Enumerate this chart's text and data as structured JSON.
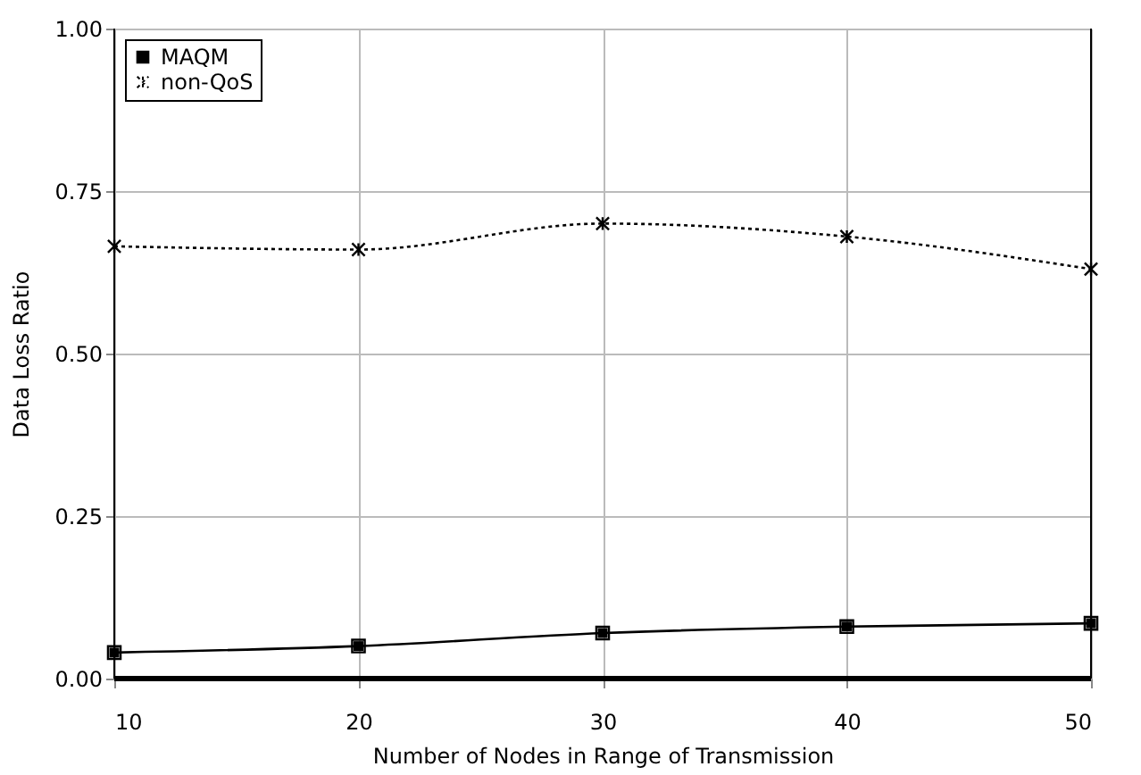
{
  "chart_data": {
    "type": "line",
    "xlabel": "Number of Nodes in Range of Transmission",
    "ylabel": "Data Loss Ratio",
    "x": [
      10,
      20,
      30,
      40,
      50
    ],
    "series": [
      {
        "name": "MAQM",
        "color": "#000000",
        "marker": "square",
        "line_style": "solid",
        "values": [
          0.04,
          0.05,
          0.07,
          0.08,
          0.085
        ]
      },
      {
        "name": "non-QoS",
        "color": "#000000",
        "marker": "cross",
        "line_style": "dotted",
        "values": [
          0.665,
          0.66,
          0.7,
          0.68,
          0.63
        ]
      }
    ],
    "xlim": [
      10,
      50
    ],
    "xticks": [
      10,
      20,
      30,
      40,
      50
    ],
    "ylim": [
      0,
      1
    ],
    "yticks": [
      {
        "value": 0,
        "label": "0.00"
      },
      {
        "value": 0.25,
        "label": "0.25"
      },
      {
        "value": 0.5,
        "label": "0.50"
      },
      {
        "value": 0.75,
        "label": "0.75"
      },
      {
        "value": 1,
        "label": "1.00"
      }
    ],
    "grid": true,
    "legend": "top left"
  }
}
